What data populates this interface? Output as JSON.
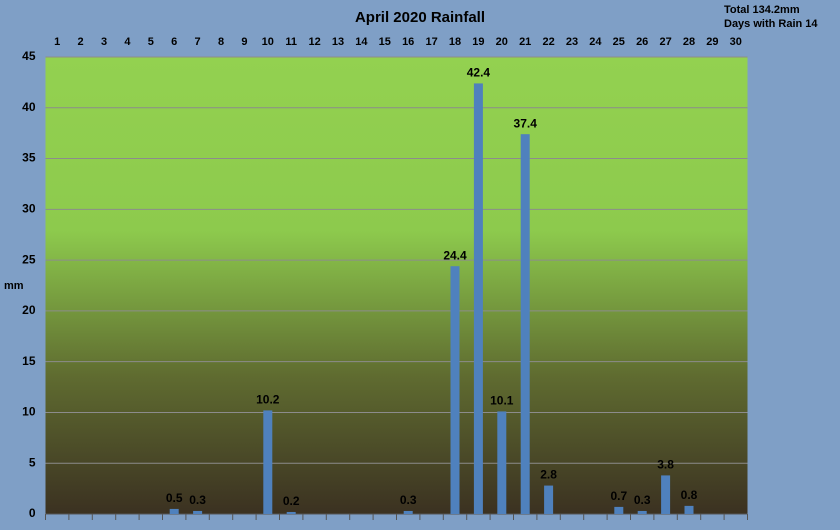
{
  "chart_data": {
    "type": "bar",
    "title": "April 2020 Rainfall",
    "annotations": [
      "Total 134.2mm",
      "Days with Rain 14"
    ],
    "y_label": "mm",
    "categories": [
      "1",
      "2",
      "3",
      "4",
      "5",
      "6",
      "7",
      "8",
      "9",
      "10",
      "11",
      "12",
      "13",
      "14",
      "15",
      "16",
      "17",
      "18",
      "19",
      "20",
      "21",
      "22",
      "23",
      "24",
      "25",
      "26",
      "27",
      "28",
      "29",
      "30"
    ],
    "values": [
      null,
      null,
      null,
      null,
      null,
      0.5,
      0.3,
      null,
      null,
      10.2,
      0.2,
      null,
      null,
      null,
      null,
      0.3,
      null,
      24.4,
      42.4,
      10.1,
      37.4,
      2.8,
      null,
      null,
      0.7,
      0.3,
      3.8,
      0.8,
      null,
      null
    ],
    "color": "#4f81bd",
    "ylim": [
      0,
      45
    ],
    "yticks": [
      0,
      5,
      10,
      15,
      20,
      25,
      30,
      35,
      40,
      45
    ],
    "grid": true
  }
}
